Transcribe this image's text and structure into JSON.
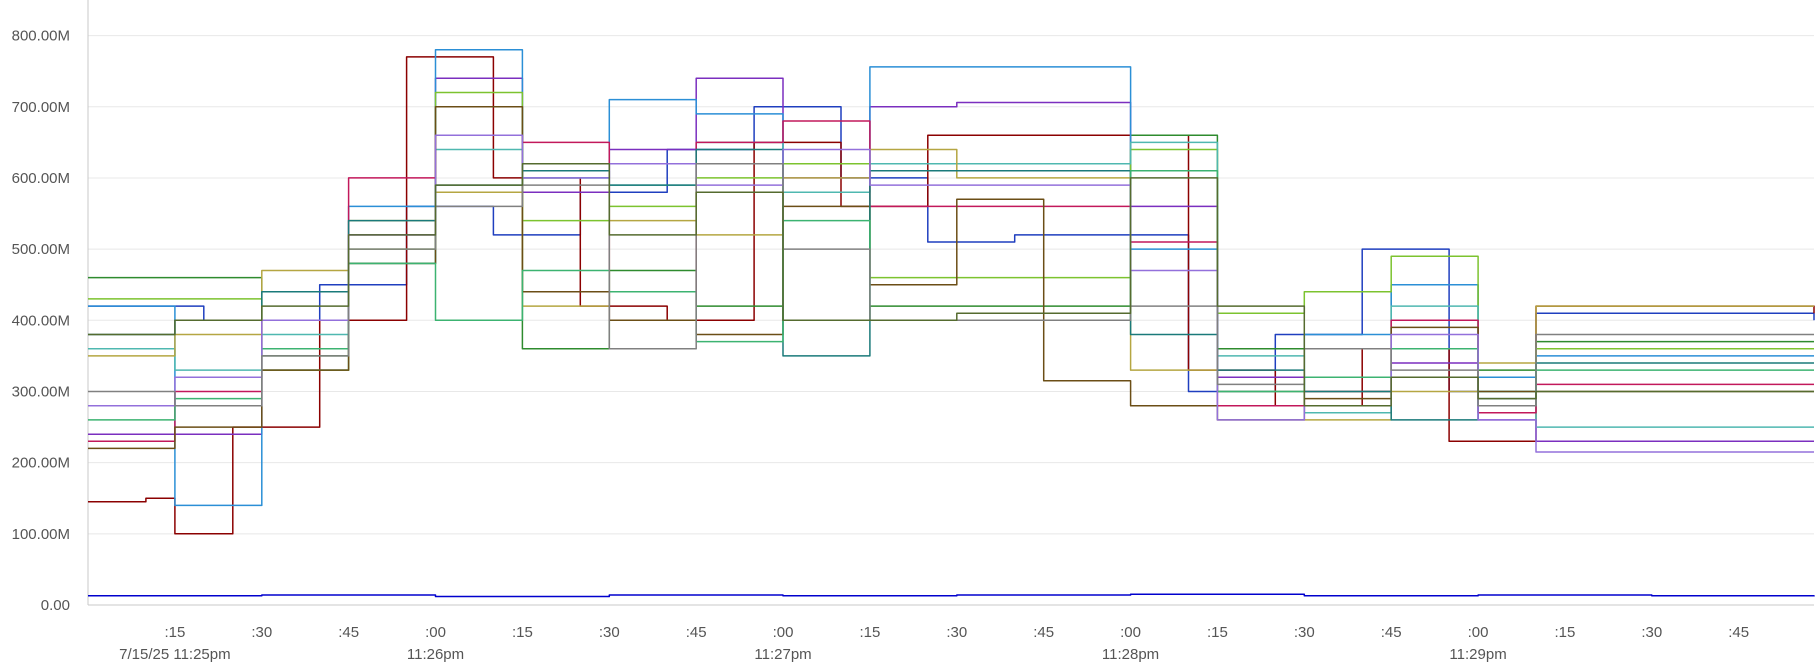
{
  "chart_data": {
    "type": "line",
    "line_style": "step",
    "y_ticks": [
      "0.00",
      "100.00M",
      "200.00M",
      "300.00M",
      "400.00M",
      "500.00M",
      "600.00M",
      "700.00M",
      "800.00M"
    ],
    "ylim": [
      0,
      850
    ],
    "y_unit": "M",
    "x_range": [
      "11:25:00",
      "11:29:58"
    ],
    "x_ticks": [
      {
        "t": "11:25:15",
        "label": ":15",
        "sub": "7/15/25 11:25pm"
      },
      {
        "t": "11:25:30",
        "label": ":30",
        "sub": ""
      },
      {
        "t": "11:25:45",
        "label": ":45",
        "sub": ""
      },
      {
        "t": "11:26:00",
        "label": ":00",
        "sub": "11:26pm"
      },
      {
        "t": "11:26:15",
        "label": ":15",
        "sub": ""
      },
      {
        "t": "11:26:30",
        "label": ":30",
        "sub": ""
      },
      {
        "t": "11:26:45",
        "label": ":45",
        "sub": ""
      },
      {
        "t": "11:27:00",
        "label": ":00",
        "sub": "11:27pm"
      },
      {
        "t": "11:27:15",
        "label": ":15",
        "sub": ""
      },
      {
        "t": "11:27:30",
        "label": ":30",
        "sub": ""
      },
      {
        "t": "11:27:45",
        "label": ":45",
        "sub": ""
      },
      {
        "t": "11:28:00",
        "label": ":00",
        "sub": "11:28pm"
      },
      {
        "t": "11:28:15",
        "label": ":15",
        "sub": ""
      },
      {
        "t": "11:28:30",
        "label": ":30",
        "sub": ""
      },
      {
        "t": "11:28:45",
        "label": ":45",
        "sub": ""
      },
      {
        "t": "11:29:00",
        "label": ":00",
        "sub": "11:29pm"
      },
      {
        "t": "11:29:15",
        "label": ":15",
        "sub": ""
      },
      {
        "t": "11:29:30",
        "label": ":30",
        "sub": ""
      },
      {
        "t": "11:29:45",
        "label": ":45",
        "sub": ""
      }
    ],
    "grid": true,
    "legend": "none",
    "series": [
      {
        "color": "#1f3fbf",
        "x": [
          "11:25:00",
          "11:25:20",
          "11:25:40",
          "11:25:55",
          "11:26:10",
          "11:26:25",
          "11:26:40",
          "11:26:55",
          "11:27:10",
          "11:27:25",
          "11:27:40",
          "11:27:55",
          "11:28:10",
          "11:28:25",
          "11:28:40",
          "11:28:55",
          "11:29:10",
          "11:29:58"
        ],
        "y": [
          420,
          400,
          450,
          560,
          520,
          580,
          640,
          700,
          600,
          510,
          520,
          520,
          300,
          380,
          500,
          300,
          410,
          400
        ]
      },
      {
        "color": "#8b0000",
        "x": [
          "11:25:00",
          "11:25:10",
          "11:25:15",
          "11:25:25",
          "11:25:40",
          "11:25:55",
          "11:26:10",
          "11:26:25",
          "11:26:40",
          "11:26:55",
          "11:27:10",
          "11:27:25",
          "11:27:40",
          "11:27:55",
          "11:28:10",
          "11:28:25",
          "11:28:40",
          "11:28:55",
          "11:29:10",
          "11:29:58"
        ],
        "y": [
          145,
          150,
          100,
          250,
          400,
          770,
          600,
          420,
          400,
          650,
          560,
          660,
          660,
          660,
          330,
          280,
          360,
          230,
          420,
          410
        ]
      },
      {
        "color": "#2e8b2e",
        "x": [
          "11:25:00",
          "11:25:15",
          "11:25:30",
          "11:25:45",
          "11:26:00",
          "11:26:15",
          "11:26:30",
          "11:26:45",
          "11:27:00",
          "11:27:15",
          "11:27:30",
          "11:27:45",
          "11:28:00",
          "11:28:15",
          "11:28:30",
          "11:28:45",
          "11:29:00",
          "11:29:10",
          "11:29:58"
        ],
        "y": [
          460,
          460,
          350,
          480,
          700,
          360,
          470,
          420,
          400,
          420,
          420,
          420,
          660,
          360,
          300,
          450,
          330,
          370,
          370
        ]
      },
      {
        "color": "#7b2fbf",
        "x": [
          "11:25:00",
          "11:25:15",
          "11:25:30",
          "11:25:45",
          "11:26:00",
          "11:26:15",
          "11:26:30",
          "11:26:45",
          "11:27:00",
          "11:27:15",
          "11:27:30",
          "11:27:45",
          "11:28:00",
          "11:28:15",
          "11:28:30",
          "11:28:45",
          "11:29:00",
          "11:29:10",
          "11:29:58"
        ],
        "y": [
          240,
          240,
          360,
          520,
          740,
          580,
          640,
          740,
          600,
          700,
          706,
          706,
          560,
          320,
          270,
          340,
          260,
          230,
          230
        ]
      },
      {
        "color": "#2b8fd6",
        "x": [
          "11:25:00",
          "11:25:15",
          "11:25:30",
          "11:25:45",
          "11:26:00",
          "11:26:15",
          "11:26:30",
          "11:26:45",
          "11:27:00",
          "11:27:15",
          "11:27:30",
          "11:27:45",
          "11:28:00",
          "11:28:15",
          "11:28:30",
          "11:28:45",
          "11:29:00",
          "11:29:10",
          "11:29:58"
        ],
        "y": [
          420,
          140,
          330,
          560,
          780,
          600,
          710,
          690,
          620,
          756,
          756,
          756,
          500,
          300,
          380,
          450,
          320,
          350,
          350
        ]
      },
      {
        "color": "#7cc32f",
        "x": [
          "11:25:00",
          "11:25:15",
          "11:25:30",
          "11:25:45",
          "11:26:00",
          "11:26:15",
          "11:26:30",
          "11:26:45",
          "11:27:00",
          "11:27:15",
          "11:27:30",
          "11:27:45",
          "11:28:00",
          "11:28:15",
          "11:28:30",
          "11:28:45",
          "11:29:00",
          "11:29:10",
          "11:29:58"
        ],
        "y": [
          430,
          430,
          330,
          500,
          720,
          540,
          560,
          600,
          620,
          460,
          460,
          460,
          640,
          410,
          440,
          490,
          300,
          360,
          360
        ]
      },
      {
        "color": "#4fb8b0",
        "x": [
          "11:25:00",
          "11:25:15",
          "11:25:30",
          "11:25:45",
          "11:26:00",
          "11:26:15",
          "11:26:30",
          "11:26:45",
          "11:27:00",
          "11:27:15",
          "11:27:30",
          "11:27:45",
          "11:28:00",
          "11:28:15",
          "11:28:30",
          "11:28:45",
          "11:29:00",
          "11:29:10",
          "11:29:58"
        ],
        "y": [
          360,
          330,
          380,
          480,
          640,
          600,
          590,
          650,
          580,
          620,
          620,
          620,
          650,
          350,
          270,
          420,
          300,
          250,
          250
        ]
      },
      {
        "color": "#b5a642",
        "x": [
          "11:25:00",
          "11:25:15",
          "11:25:30",
          "11:25:45",
          "11:26:00",
          "11:26:15",
          "11:26:30",
          "11:26:45",
          "11:27:00",
          "11:27:15",
          "11:27:30",
          "11:27:45",
          "11:28:00",
          "11:28:15",
          "11:28:30",
          "11:28:45",
          "11:29:00",
          "11:29:10",
          "11:29:58"
        ],
        "y": [
          350,
          380,
          470,
          540,
          580,
          420,
          540,
          520,
          600,
          640,
          600,
          600,
          330,
          300,
          260,
          300,
          340,
          420,
          420
        ]
      },
      {
        "color": "#c2185b",
        "x": [
          "11:25:00",
          "11:25:15",
          "11:25:30",
          "11:25:45",
          "11:26:00",
          "11:26:15",
          "11:26:30",
          "11:26:45",
          "11:27:00",
          "11:27:15",
          "11:27:30",
          "11:27:45",
          "11:28:00",
          "11:28:15",
          "11:28:30",
          "11:28:45",
          "11:29:00",
          "11:29:10",
          "11:29:58"
        ],
        "y": [
          230,
          300,
          400,
          600,
          660,
          650,
          400,
          650,
          680,
          560,
          560,
          560,
          510,
          280,
          300,
          400,
          270,
          310,
          310
        ]
      },
      {
        "color": "#6b4e16",
        "x": [
          "11:25:00",
          "11:25:15",
          "11:25:30",
          "11:25:45",
          "11:26:00",
          "11:26:15",
          "11:26:30",
          "11:26:45",
          "11:27:00",
          "11:27:15",
          "11:27:30",
          "11:27:45",
          "11:28:00",
          "11:28:15",
          "11:28:30",
          "11:28:45",
          "11:29:00",
          "11:29:10",
          "11:29:58"
        ],
        "y": [
          220,
          250,
          330,
          480,
          700,
          440,
          400,
          380,
          560,
          450,
          570,
          315,
          280,
          260,
          290,
          390,
          300,
          300,
          300
        ]
      },
      {
        "color": "#1a7a7a",
        "x": [
          "11:25:00",
          "11:25:15",
          "11:25:30",
          "11:25:45",
          "11:26:00",
          "11:26:15",
          "11:26:30",
          "11:26:45",
          "11:27:00",
          "11:27:15",
          "11:27:30",
          "11:27:45",
          "11:28:00",
          "11:28:15",
          "11:28:30",
          "11:28:45",
          "11:29:00",
          "11:29:10",
          "11:29:58"
        ],
        "y": [
          380,
          400,
          440,
          540,
          590,
          610,
          590,
          640,
          350,
          610,
          610,
          610,
          380,
          330,
          300,
          260,
          290,
          340,
          340
        ]
      },
      {
        "color": "#3cb371",
        "x": [
          "11:25:00",
          "11:25:15",
          "11:25:30",
          "11:25:45",
          "11:26:00",
          "11:26:15",
          "11:26:30",
          "11:26:45",
          "11:27:00",
          "11:27:15",
          "11:27:30",
          "11:27:45",
          "11:28:00",
          "11:28:15",
          "11:28:30",
          "11:28:45",
          "11:29:00",
          "11:29:10",
          "11:29:58"
        ],
        "y": [
          260,
          290,
          360,
          480,
          400,
          470,
          440,
          370,
          540,
          400,
          400,
          400,
          610,
          300,
          320,
          360,
          280,
          330,
          330
        ]
      },
      {
        "color": "#9370db",
        "x": [
          "11:25:00",
          "11:25:15",
          "11:25:30",
          "11:25:45",
          "11:26:00",
          "11:26:15",
          "11:26:30",
          "11:26:45",
          "11:27:00",
          "11:27:15",
          "11:27:30",
          "11:27:45",
          "11:28:00",
          "11:28:15",
          "11:28:30",
          "11:28:45",
          "11:29:00",
          "11:29:10",
          "11:29:58"
        ],
        "y": [
          280,
          320,
          400,
          520,
          660,
          600,
          620,
          590,
          640,
          590,
          590,
          590,
          470,
          260,
          280,
          380,
          260,
          215,
          215
        ]
      },
      {
        "color": "#808080",
        "x": [
          "11:25:00",
          "11:25:15",
          "11:25:30",
          "11:25:45",
          "11:26:00",
          "11:26:15",
          "11:26:30",
          "11:26:45",
          "11:27:00",
          "11:27:15",
          "11:27:30",
          "11:27:45",
          "11:28:00",
          "11:28:15",
          "11:28:30",
          "11:28:45",
          "11:29:00",
          "11:29:10",
          "11:29:58"
        ],
        "y": [
          300,
          280,
          350,
          500,
          560,
          590,
          360,
          620,
          500,
          400,
          400,
          400,
          420,
          310,
          360,
          330,
          280,
          380,
          380
        ]
      },
      {
        "color": "#556b2f",
        "x": [
          "11:25:00",
          "11:25:15",
          "11:25:30",
          "11:25:45",
          "11:26:00",
          "11:26:15",
          "11:26:30",
          "11:26:45",
          "11:27:00",
          "11:27:15",
          "11:27:30",
          "11:27:45",
          "11:28:00",
          "11:28:15",
          "11:28:30",
          "11:28:45",
          "11:29:00",
          "11:29:10",
          "11:29:58"
        ],
        "y": [
          380,
          400,
          420,
          520,
          590,
          620,
          520,
          580,
          400,
          400,
          410,
          410,
          600,
          420,
          280,
          320,
          290,
          300,
          300
        ]
      },
      {
        "color": "#0000cd",
        "x": [
          "11:25:00",
          "11:25:30",
          "11:26:00",
          "11:26:30",
          "11:27:00",
          "11:27:30",
          "11:28:00",
          "11:28:30",
          "11:29:00",
          "11:29:30",
          "11:29:58"
        ],
        "y": [
          13,
          14,
          12,
          14,
          13,
          14,
          15,
          13,
          14,
          13,
          12
        ]
      }
    ]
  }
}
